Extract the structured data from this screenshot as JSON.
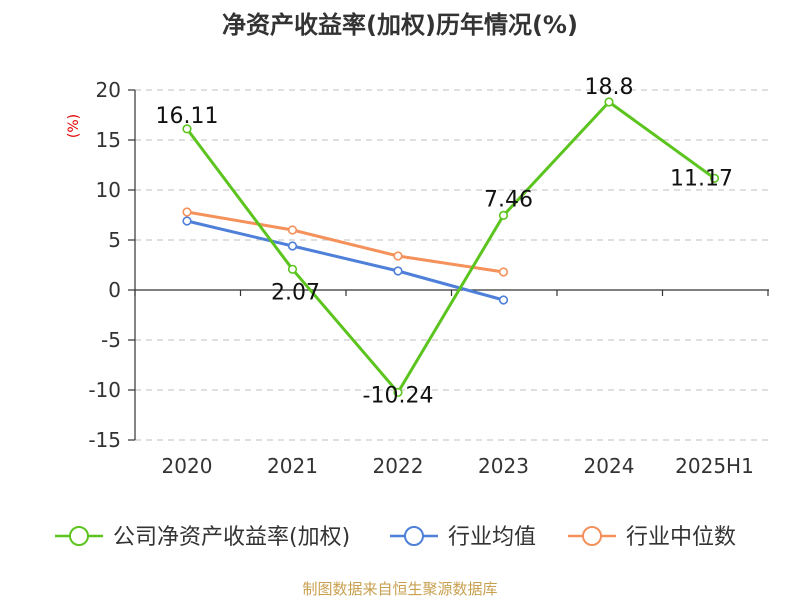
{
  "chart_data": {
    "type": "line",
    "title": "净资产收益率(加权)历年情况(%)",
    "ylabel": "(%)",
    "categories": [
      "2020",
      "2021",
      "2022",
      "2023",
      "2024",
      "2025H1"
    ],
    "ylim": [
      -15,
      20
    ],
    "yticks": [
      20,
      15,
      10,
      5,
      0,
      -5,
      -10,
      -15
    ],
    "ytick_labels": [
      "20",
      "15",
      "10",
      "5",
      "0",
      "-5",
      "-10",
      "-15"
    ],
    "grid": true,
    "legend_position": "bottom",
    "series": [
      {
        "name": "公司净资产收益率(加权)",
        "color": "#5cc41e",
        "values": [
          16.11,
          2.07,
          -10.24,
          7.46,
          18.8,
          11.17
        ],
        "labels": [
          "16.11",
          "2.07",
          "-10.24",
          "7.46",
          "18.8",
          "11.17"
        ]
      },
      {
        "name": "行业均值",
        "color": "#4e7fd9",
        "values": [
          6.9,
          4.4,
          1.9,
          -1.0,
          null,
          null
        ]
      },
      {
        "name": "行业中位数",
        "color": "#f5915a",
        "values": [
          7.8,
          6.0,
          3.4,
          1.8,
          null,
          null
        ]
      }
    ]
  },
  "source": "制图数据来自恒生聚源数据库"
}
